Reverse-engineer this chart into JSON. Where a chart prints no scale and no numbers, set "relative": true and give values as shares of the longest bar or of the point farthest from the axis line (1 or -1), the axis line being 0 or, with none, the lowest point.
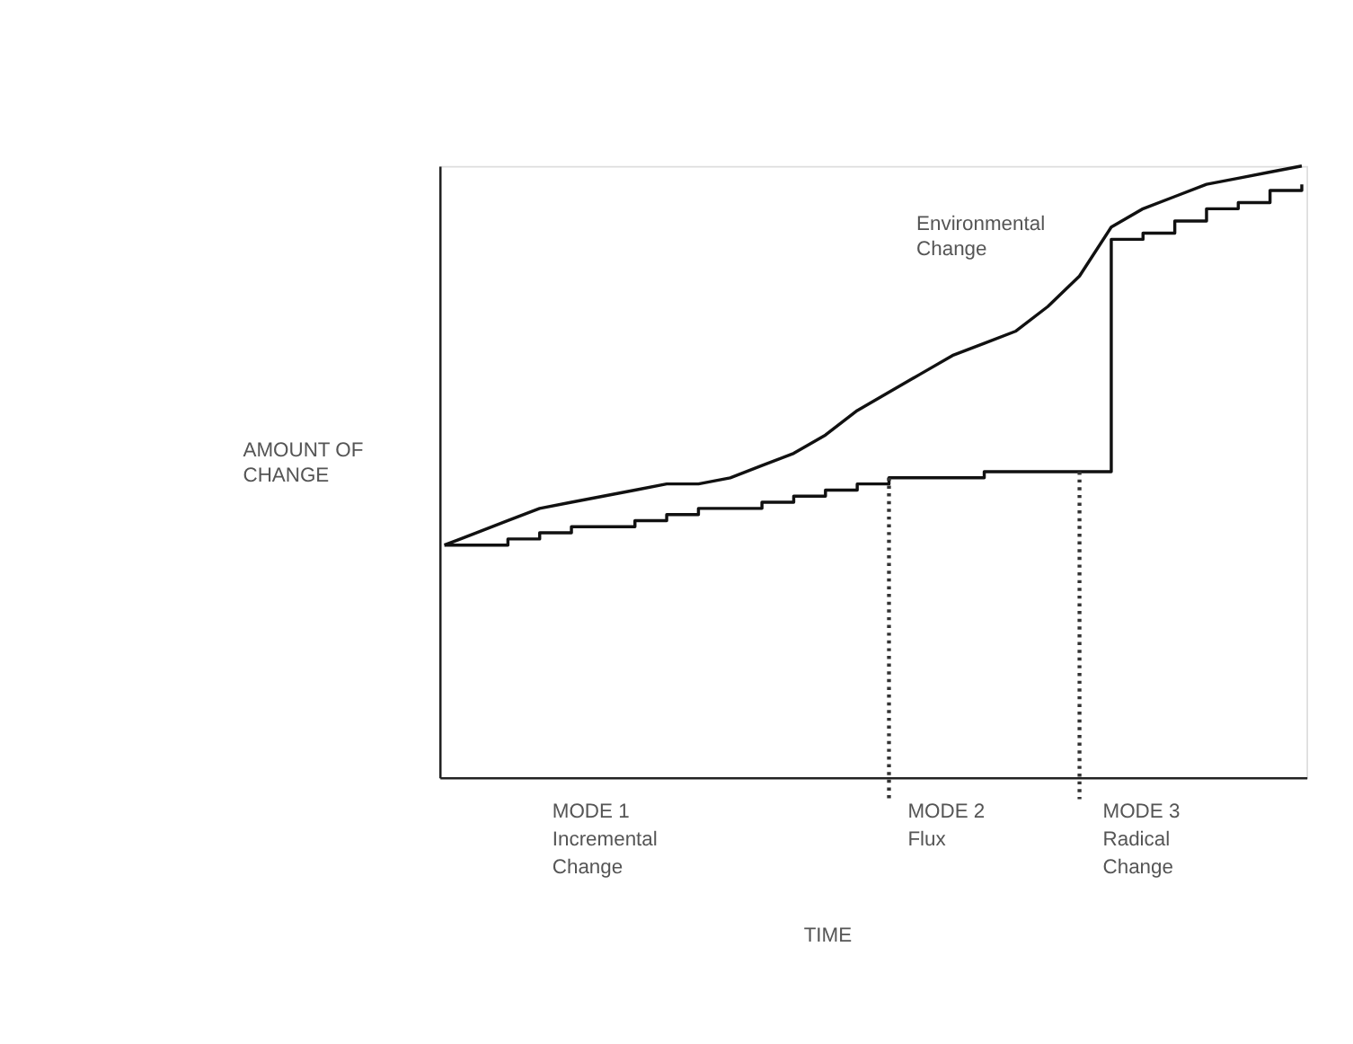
{
  "chart_data": {
    "type": "line",
    "relative": true,
    "tick_labels": false,
    "grid": false,
    "categories": [
      null,
      null,
      null,
      null,
      null,
      null,
      null,
      null,
      null,
      null,
      null,
      null,
      null,
      null,
      null,
      null,
      null,
      null,
      null,
      null,
      null,
      null,
      null,
      null,
      null,
      null,
      null,
      null
    ],
    "series": [
      {
        "color": "#111111",
        "values": [
          0.38,
          0.4,
          0.42,
          0.44,
          0.45,
          0.46,
          0.47,
          0.48,
          0.48,
          0.49,
          0.51,
          0.53,
          0.56,
          0.6,
          0.63,
          0.66,
          0.69,
          0.71,
          0.73,
          0.77,
          0.82,
          0.9,
          0.93,
          0.95,
          0.97,
          0.98,
          0.99,
          1.0
        ]
      },
      {
        "type": "step",
        "color": "#111111",
        "values": [
          0.38,
          0.38,
          0.39,
          0.4,
          0.41,
          0.41,
          0.42,
          0.43,
          0.44,
          0.44,
          0.45,
          0.46,
          0.47,
          0.48,
          0.49,
          0.49,
          0.49,
          0.5,
          0.5,
          0.5,
          0.5,
          0.88,
          0.89,
          0.91,
          0.93,
          0.94,
          0.96,
          0.97
        ]
      }
    ],
    "annotations": [
      "Environmental\nChange",
      "AMOUNT OF\nCHANGE",
      "MODE 1\nIncremental\nChange",
      "MODE 2\nFlux",
      "MODE 3\nRadical\nChange",
      "TIME"
    ]
  }
}
